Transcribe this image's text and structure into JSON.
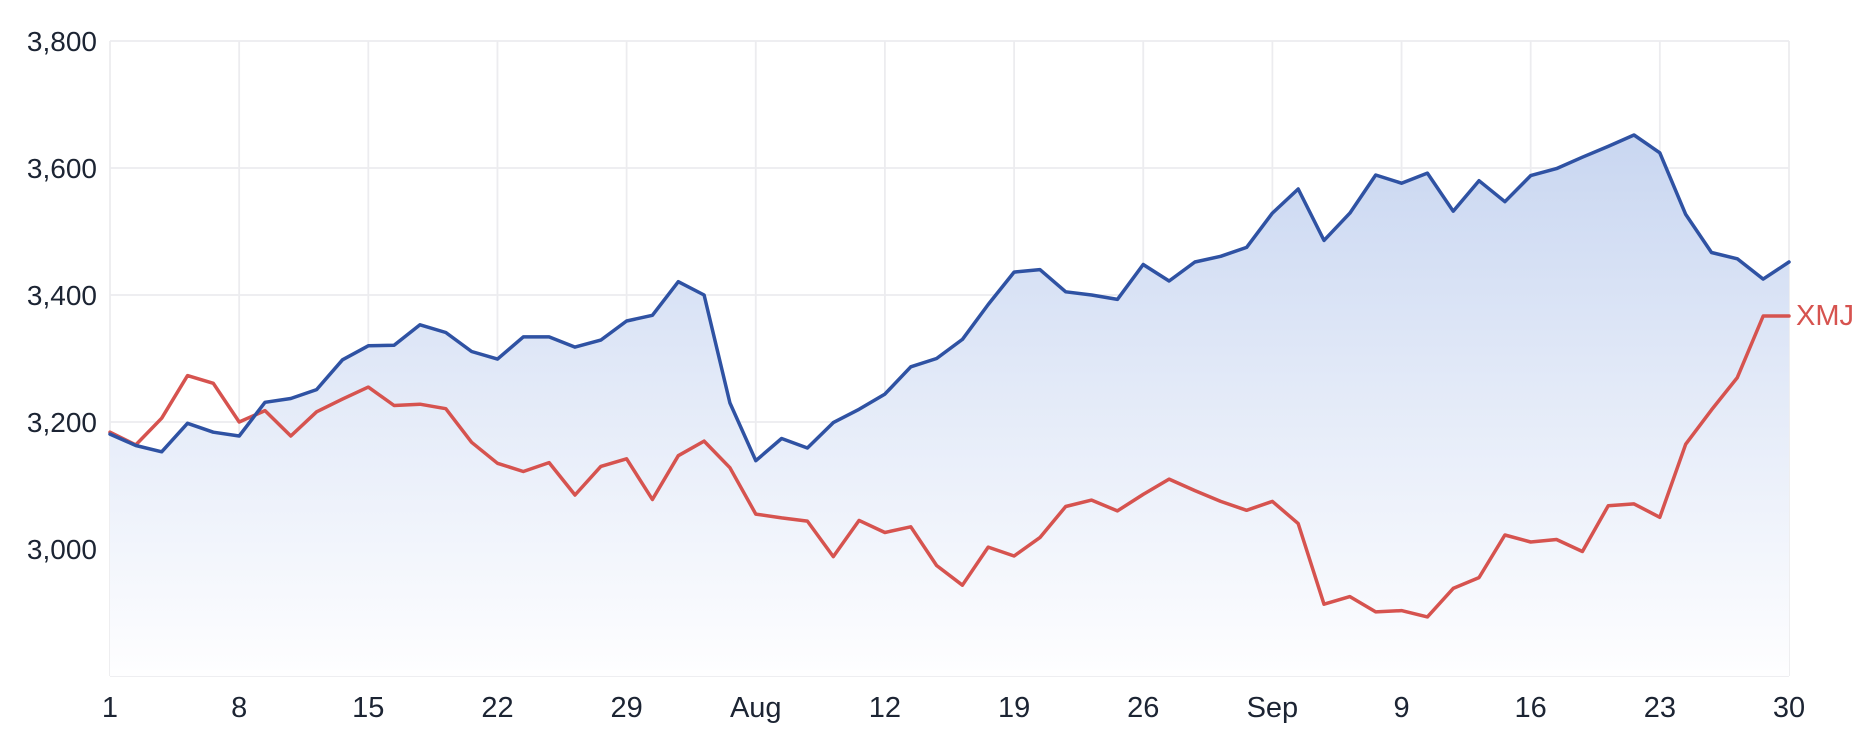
{
  "chart_data": {
    "type": "area",
    "title": "",
    "xlabel": "",
    "ylabel": "",
    "ylim": [
      2800,
      3800
    ],
    "grid": true,
    "legend_position": "right-of-last-point",
    "colors": {
      "main_line": "#2F52A3",
      "area_fill_top": "#BFCFEE",
      "area_fill_mid": "#E3EAF8",
      "area_fill_bottom": "#FEFEFF",
      "xmj_line": "#D6534F",
      "gridline": "#ECECEF",
      "axis_text": "#1C2433",
      "background": "#FFFFFF"
    },
    "y_ticks": {
      "values": [
        3800,
        3600,
        3400,
        3200,
        3000,
        2800
      ],
      "labels": [
        "3,800",
        "3,600",
        "3,400",
        "3,200",
        "3,000",
        ""
      ]
    },
    "x_ticks": {
      "labels": [
        "1",
        "8",
        "15",
        "22",
        "29",
        "Aug",
        "12",
        "19",
        "26",
        "Sep",
        "9",
        "16",
        "23",
        "30"
      ],
      "day_indices": [
        0,
        5,
        10,
        15,
        20,
        25,
        30,
        35,
        40,
        45,
        50,
        55,
        60,
        65
      ]
    },
    "dates": [
      "Jul 1",
      "Jul 2",
      "Jul 3",
      "Jul 4",
      "Jul 5",
      "Jul 8",
      "Jul 9",
      "Jul 10",
      "Jul 11",
      "Jul 12",
      "Jul 15",
      "Jul 16",
      "Jul 17",
      "Jul 18",
      "Jul 19",
      "Jul 22",
      "Jul 23",
      "Jul 24",
      "Jul 25",
      "Jul 26",
      "Jul 29",
      "Jul 30",
      "Jul 31",
      "Aug 1",
      "Aug 2",
      "Aug 5",
      "Aug 6",
      "Aug 7",
      "Aug 8",
      "Aug 9",
      "Aug 12",
      "Aug 13",
      "Aug 14",
      "Aug 15",
      "Aug 16",
      "Aug 19",
      "Aug 20",
      "Aug 21",
      "Aug 22",
      "Aug 23",
      "Aug 26",
      "Aug 27",
      "Aug 28",
      "Aug 29",
      "Aug 30",
      "Sep 2",
      "Sep 3",
      "Sep 4",
      "Sep 5",
      "Sep 6",
      "Sep 9",
      "Sep 10",
      "Sep 11",
      "Sep 12",
      "Sep 13",
      "Sep 16",
      "Sep 17",
      "Sep 18",
      "Sep 19",
      "Sep 20",
      "Sep 23",
      "Sep 24",
      "Sep 25",
      "Sep 26",
      "Sep 27",
      "Sep 30"
    ],
    "series": [
      {
        "name": "",
        "style": "area",
        "color": "#2F52A3",
        "values": [
          3181,
          3163,
          3153,
          3198,
          3184,
          3178,
          3231,
          3237,
          3251,
          3298,
          3320,
          3321,
          3353,
          3341,
          3311,
          3299,
          3334,
          3334,
          3318,
          3329,
          3359,
          3368,
          3421,
          3400,
          3230,
          3139,
          3174,
          3159,
          3199,
          3220,
          3244,
          3287,
          3300,
          3330,
          3385,
          3436,
          3440,
          3405,
          3400,
          3393,
          3448,
          3422,
          3452,
          3461,
          3475,
          3529,
          3567,
          3486,
          3529,
          3589,
          3576,
          3592,
          3532,
          3580,
          3547,
          3588,
          3599,
          3617,
          3634,
          3652,
          3624,
          3527,
          3467,
          3457,
          3425,
          3452
        ]
      },
      {
        "name": "XMJ",
        "style": "line",
        "color": "#D6534F",
        "values": [
          3184,
          3164,
          3206,
          3273,
          3261,
          3200,
          3218,
          3178,
          3216,
          3236,
          3255,
          3226,
          3228,
          3221,
          3168,
          3135,
          3122,
          3136,
          3085,
          3130,
          3142,
          3078,
          3147,
          3170,
          3128,
          3055,
          3049,
          3044,
          2988,
          3045,
          3026,
          3035,
          2974,
          2943,
          3003,
          2989,
          3018,
          3067,
          3077,
          3060,
          3086,
          3110,
          3092,
          3075,
          3061,
          3075,
          3040,
          2913,
          2925,
          2901,
          2903,
          2893,
          2938,
          2955,
          3022,
          3011,
          3015,
          2996,
          3068,
          3071,
          3050,
          3165,
          3219,
          3270,
          3367,
          3367
        ]
      }
    ]
  }
}
